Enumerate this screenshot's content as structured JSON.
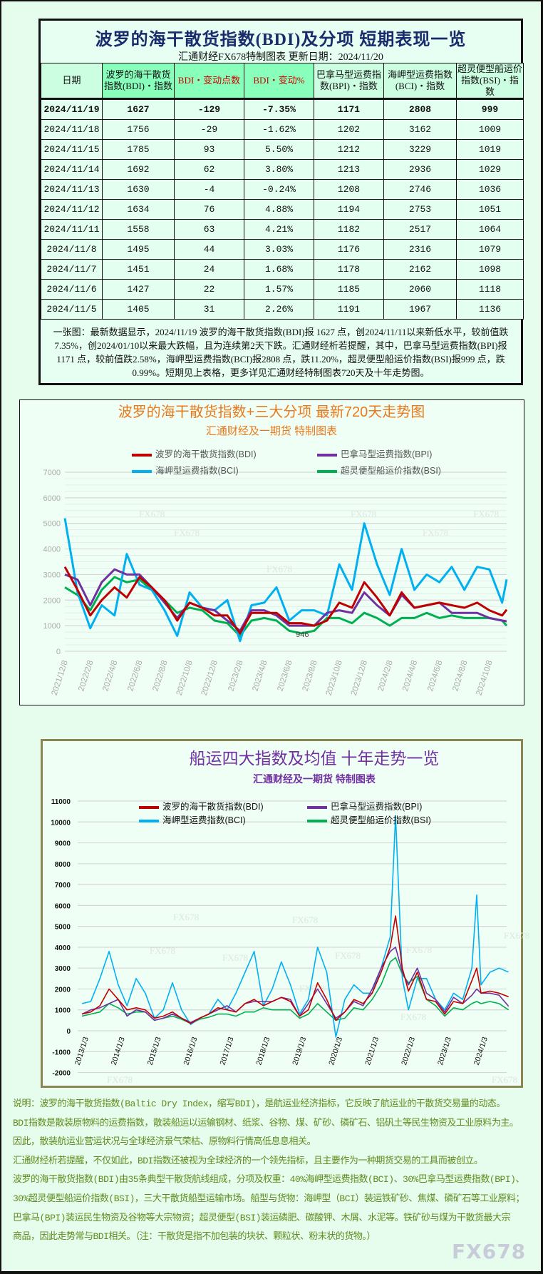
{
  "table": {
    "title": "波罗的海干散货指数(BDI)及分项 短期表现一览",
    "subtitle": "汇通财经FX678特制图表    更新日期：2024/11/20",
    "headers": [
      "日期",
      "波罗的海干散货指数(BDI)・指数",
      "BDI・变动点数",
      "BDI・变动%",
      "巴拿马型运费指数(BPI)・指数",
      "海岬型运费指数(BCI)・指数",
      "超灵便型船运价指数(BSI)・指数"
    ],
    "rows": [
      [
        "2024/11/19",
        "1627",
        "-129",
        "-7.35%",
        "1171",
        "2808",
        "999"
      ],
      [
        "2024/11/18",
        "1756",
        "-29",
        "-1.62%",
        "1202",
        "3162",
        "1009"
      ],
      [
        "2024/11/15",
        "1785",
        "93",
        "5.50%",
        "1212",
        "3229",
        "1019"
      ],
      [
        "2024/11/14",
        "1692",
        "62",
        "3.80%",
        "1213",
        "2936",
        "1029"
      ],
      [
        "2024/11/13",
        "1630",
        "-4",
        "-0.24%",
        "1208",
        "2746",
        "1036"
      ],
      [
        "2024/11/12",
        "1634",
        "76",
        "4.88%",
        "1194",
        "2753",
        "1051"
      ],
      [
        "2024/11/11",
        "1558",
        "63",
        "4.21%",
        "1182",
        "2517",
        "1064"
      ],
      [
        "2024/11/8",
        "1495",
        "44",
        "3.03%",
        "1176",
        "2316",
        "1079"
      ],
      [
        "2024/11/7",
        "1451",
        "24",
        "1.68%",
        "1178",
        "2162",
        "1098"
      ],
      [
        "2024/11/6",
        "1427",
        "22",
        "1.57%",
        "1185",
        "2060",
        "1118"
      ],
      [
        "2024/11/5",
        "1405",
        "31",
        "2.26%",
        "1191",
        "1967",
        "1136"
      ]
    ],
    "summary": "一张图：最新数据显示，2024/11/19 波罗的海干散货指数(BDI)报 1627 点，创2024/11/11以来新低水平，较前值跌7.35%，创2024/01/10以来最大跌幅，且为连续第2天下跌。汇通财经析若提醒，其中，巴拿马型运费指数(BPI)报 1171 点，较前值跌2.58%，海岬型运费指数(BCI)报2808 点，跌11.20%，超灵便型船运价指数(BSI)报999 点，跌 0.99%。短期见上表格，更多详见汇通财经特制图表720天及十年走势图。"
  },
  "colors": {
    "BDI": "#c00000",
    "BPI": "#7030a0",
    "BCI": "#00b0f0",
    "BSI": "#00b050",
    "chart1_title": "#e8791c",
    "chart2_title": "#7030a0",
    "table_title": "#1a2b6b"
  },
  "watermark": "FX678",
  "chart_data": [
    {
      "type": "line",
      "title": "波罗的海干散货指数+三大分项  最新720天走势图",
      "subtitle": "汇通财经及一期货 特制图表",
      "ylim": [
        0,
        7000
      ],
      "yticks": [
        0,
        1000,
        2000,
        3000,
        4000,
        5000,
        6000,
        7000
      ],
      "grid": true,
      "legend": "top",
      "xticks": [
        "2021/12/8",
        "2022/2/8",
        "2022/4/8",
        "2022/6/8",
        "2022/8/8",
        "2022/10/8",
        "2022/12/8",
        "2023/2/8",
        "2023/4/8",
        "2023/6/8",
        "2023/8/8",
        "2023/10/8",
        "2023/12/8",
        "2024/2/8",
        "2024/4/8",
        "2024/6/8",
        "2024/8/8",
        "2024/10/8"
      ],
      "x": [
        "2021/12/8",
        "2022/1/8",
        "2022/2/8",
        "2022/3/8",
        "2022/4/8",
        "2022/5/8",
        "2022/6/8",
        "2022/7/8",
        "2022/8/8",
        "2022/9/8",
        "2022/10/8",
        "2022/11/8",
        "2022/12/8",
        "2023/1/8",
        "2023/2/8",
        "2023/3/8",
        "2023/4/8",
        "2023/5/8",
        "2023/6/8",
        "2023/7/8",
        "2023/8/8",
        "2023/9/8",
        "2023/10/8",
        "2023/11/8",
        "2023/12/8",
        "2024/1/8",
        "2024/2/8",
        "2024/3/8",
        "2024/4/8",
        "2024/5/8",
        "2024/6/8",
        "2024/7/8",
        "2024/8/8",
        "2024/9/8",
        "2024/10/8",
        "2024/11/8",
        "2024/11/19"
      ],
      "series": [
        {
          "name": "波罗的海干散货指数(BDI)",
          "key": "BDI",
          "values": [
            3300,
            2400,
            1400,
            2000,
            2500,
            2100,
            2900,
            2500,
            2000,
            1200,
            1900,
            1700,
            1400,
            1400,
            700,
            1500,
            1500,
            1500,
            1100,
            1100,
            1000,
            1200,
            1900,
            1700,
            2700,
            2100,
            1400,
            2300,
            1700,
            1800,
            1900,
            1800,
            1700,
            1900,
            1600,
            1400,
            1627
          ]
        },
        {
          "name": "巴拿马型运费指数(BPI)",
          "key": "BPI",
          "values": [
            3000,
            2800,
            1800,
            2700,
            3200,
            3000,
            3000,
            2500,
            1900,
            1300,
            1900,
            1700,
            1600,
            1200,
            800,
            1600,
            1600,
            1400,
            1000,
            1000,
            1000,
            1500,
            1600,
            1500,
            2300,
            1800,
            1400,
            2200,
            1700,
            1800,
            1900,
            1500,
            1500,
            1500,
            1300,
            1200,
            1171
          ]
        },
        {
          "name": "海岬型运费指数(BCI)",
          "key": "BCI",
          "values": [
            5200,
            2300,
            900,
            1800,
            1400,
            3800,
            2600,
            2400,
            1600,
            600,
            2300,
            1700,
            1600,
            2000,
            400,
            1800,
            1900,
            2500,
            1200,
            1600,
            1600,
            1400,
            3400,
            2400,
            5000,
            3400,
            2200,
            4000,
            2400,
            3000,
            2700,
            3300,
            2400,
            3300,
            3200,
            1900,
            2808
          ]
        },
        {
          "name": "超灵便型船运价指数(BSI)",
          "key": "BSI",
          "values": [
            2500,
            2200,
            1600,
            2400,
            2900,
            2700,
            2800,
            2400,
            2000,
            1500,
            1700,
            1600,
            1200,
            1100,
            600,
            1200,
            1300,
            1200,
            800,
            700,
            800,
            1300,
            1300,
            1100,
            1500,
            1300,
            1000,
            1300,
            1300,
            1500,
            1300,
            1400,
            1300,
            1300,
            1300,
            1200,
            999
          ]
        }
      ],
      "annotations": [
        {
          "text": "946",
          "x": "2023/7/8",
          "y": 946
        }
      ]
    },
    {
      "type": "line",
      "title": "船运四大指数及均值 十年走势一览",
      "subtitle": "汇通财经及一期货 特制图表",
      "ylim": [
        -2000,
        11000
      ],
      "yticks": [
        -2000,
        -1000,
        0,
        1000,
        2000,
        3000,
        4000,
        5000,
        6000,
        7000,
        8000,
        9000,
        10000,
        11000
      ],
      "grid": true,
      "legend": "top",
      "xticks": [
        "2013/1/3",
        "2014/1/3",
        "2015/1/3",
        "2016/1/3",
        "2017/1/3",
        "2018/1/3",
        "2019/1/3",
        "2020/1/3",
        "2021/1/3",
        "2022/1/3",
        "2023/1/3",
        "2024/1/3"
      ],
      "x": [
        "2013/2/15",
        "2013/5/15",
        "2013/8/15",
        "2013/11/15",
        "2014/2/15",
        "2014/5/15",
        "2014/8/15",
        "2014/11/15",
        "2015/2/15",
        "2015/5/15",
        "2015/8/15",
        "2015/11/15",
        "2016/2/15",
        "2016/5/15",
        "2016/8/15",
        "2016/11/15",
        "2017/2/15",
        "2017/5/15",
        "2017/8/15",
        "2017/11/15",
        "2018/2/15",
        "2018/5/15",
        "2018/8/15",
        "2018/11/15",
        "2019/2/15",
        "2019/5/15",
        "2019/8/15",
        "2019/11/15",
        "2020/2/15",
        "2020/5/15",
        "2020/8/15",
        "2020/11/15",
        "2021/2/15",
        "2021/5/15",
        "2021/8/15",
        "2021/10/8",
        "2021/12/15",
        "2022/2/15",
        "2022/5/15",
        "2022/8/15",
        "2022/11/15",
        "2023/2/15",
        "2023/5/15",
        "2023/8/15",
        "2023/11/15",
        "2024/1/3",
        "2024/2/15",
        "2024/5/15",
        "2024/8/15",
        "2024/11/19"
      ],
      "series": [
        {
          "name": "波罗的海干散货指数(BDI)",
          "key": "BDI",
          "values": [
            800,
            900,
            1200,
            2000,
            1500,
            1000,
            1100,
            1000,
            600,
            700,
            900,
            600,
            350,
            600,
            800,
            1100,
            1000,
            900,
            1300,
            1500,
            1200,
            1400,
            1600,
            1400,
            700,
            1000,
            2300,
            1500,
            500,
            900,
            1500,
            1300,
            1800,
            2800,
            4000,
            5500,
            3000,
            1900,
            2800,
            1500,
            1400,
            800,
            1400,
            1300,
            2400,
            3000,
            1800,
            1900,
            1800,
            1627
          ]
        },
        {
          "name": "巴拿马型运费指数(BPI)",
          "key": "BPI",
          "values": [
            800,
            1000,
            1100,
            1300,
            1500,
            700,
            1000,
            900,
            500,
            600,
            800,
            600,
            400,
            600,
            800,
            1000,
            1200,
            900,
            1300,
            1400,
            1400,
            1400,
            1600,
            1500,
            700,
            1300,
            2000,
            1300,
            600,
            900,
            1400,
            1200,
            2000,
            3000,
            3800,
            4000,
            2800,
            2200,
            3000,
            1800,
            1500,
            900,
            1600,
            1300,
            1700,
            2000,
            1800,
            1800,
            1700,
            1171
          ]
        },
        {
          "name": "海岬型运费指数(BCI)",
          "key": "BCI",
          "values": [
            1300,
            1400,
            2500,
            3800,
            2200,
            1200,
            2500,
            1800,
            600,
            1000,
            2300,
            1000,
            300,
            600,
            800,
            1500,
            1000,
            1800,
            2800,
            3800,
            1200,
            2000,
            3300,
            2200,
            800,
            1500,
            4000,
            2800,
            -300,
            1500,
            2200,
            1800,
            1800,
            3000,
            4500,
            10300,
            2500,
            1000,
            2500,
            2500,
            1500,
            1000,
            1800,
            1500,
            3000,
            6500,
            2200,
            2800,
            3000,
            2808
          ]
        },
        {
          "name": "超灵便型船运价指数(BSI)",
          "key": "BSI",
          "values": [
            700,
            800,
            900,
            1300,
            1100,
            800,
            900,
            900,
            500,
            600,
            700,
            550,
            350,
            550,
            650,
            800,
            800,
            700,
            900,
            900,
            1100,
            1000,
            1000,
            1000,
            600,
            800,
            1300,
            900,
            500,
            600,
            1100,
            1000,
            1500,
            2200,
            3300,
            3500,
            2700,
            2300,
            2600,
            1500,
            1200,
            700,
            1100,
            1000,
            1300,
            1400,
            1300,
            1400,
            1300,
            999
          ]
        }
      ]
    }
  ],
  "notes": [
    "说明：波罗的海干散货指数(Baltic Dry Index，缩写BDI)，是航运业经济指标，它反映了航运业的干散货交易量的动态。",
    "BDI指数是散装原物料的运费指数，散装船运以运输钢材、纸浆、谷物、煤、矿砂、磷矿石、铝矾土等民生物资及工业原料为主。",
    "因此，散装航运业营运状况与全球经济景气荣枯、原物料行情高低息息相关。",
    "汇通财经析若提醒，不仅如此，BDI指数还被视为全球经济的一个领先指标，且主要作为一种期货交易的工具而被创立。",
    "波罗的海干散货指数(BDI)由35条典型干散货航线组成，分项及权重：40%海岬型运费指数(BCI)、30%巴拿马型运费指数(BPI)、",
    "30%超灵便型船运价指数(BSI)，三大干散货船型运输市场。船型与货物：海岬型（BCI）装运铁矿砂、焦煤、磷矿石等工业原料；",
    "巴拿马(BPI)装运民生物资及谷物等大宗物资；超灵便型(BSI)装运磷肥、碳酸钾、木屑、水泥等。铁矿砂与煤为干散货最大宗",
    "商品，因此走势常与BDI相关。（注：干散货是指不加包装的块状、颗粒状、粉末状的货物。）"
  ]
}
